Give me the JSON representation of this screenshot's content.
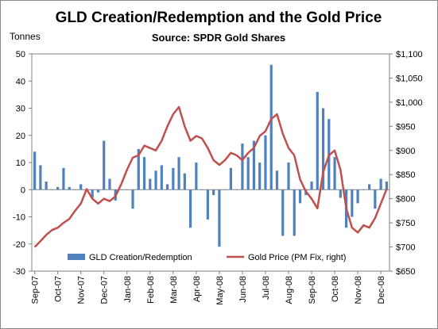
{
  "chart_data": {
    "type": "bar-line",
    "title": "GLD Creation/Redemption  and the Gold Price",
    "subtitle": "Source: SPDR Gold Shares",
    "y_label": "Tonnes",
    "categories": [
      "Sep-07",
      null,
      null,
      null,
      "Oct-07",
      null,
      null,
      null,
      "Nov-07",
      null,
      null,
      null,
      "Dec-07",
      null,
      null,
      null,
      "Jan-08",
      null,
      null,
      null,
      "Feb-08",
      null,
      null,
      null,
      "Mar-08",
      null,
      null,
      null,
      "Apr-08",
      null,
      null,
      null,
      "May-08",
      null,
      null,
      null,
      "Jun-08",
      null,
      null,
      null,
      "Jul-08",
      null,
      null,
      null,
      "Aug-08",
      null,
      null,
      null,
      "Sep-08",
      null,
      null,
      null,
      "Oct-08",
      null,
      null,
      null,
      "Nov-08",
      null,
      null,
      null,
      "Dec-08",
      null
    ],
    "series": [
      {
        "name": "GLD Creation/Redemption",
        "color": "#4f81bd",
        "type": "bar",
        "values": [
          14,
          9,
          3,
          0,
          1,
          8,
          1,
          0,
          2,
          0,
          -3,
          -1,
          18,
          4,
          -4,
          0,
          0,
          -7,
          15,
          12,
          4,
          7,
          9,
          2,
          8,
          12,
          6,
          -14,
          10,
          0,
          -11,
          -2,
          -21,
          0,
          8,
          0,
          17,
          12,
          18,
          10,
          20,
          46,
          7,
          -17,
          10,
          -17,
          -5,
          -2,
          3,
          36,
          30,
          26,
          12,
          -3,
          -14,
          -10,
          -5,
          0,
          2,
          -7,
          4,
          3
        ]
      },
      {
        "name": "Gold Price (PM Fix, right)",
        "color": "#c0504d",
        "type": "line",
        "axis": "y2",
        "values": [
          700,
          712,
          725,
          735,
          740,
          750,
          758,
          775,
          790,
          820,
          800,
          790,
          800,
          795,
          805,
          830,
          860,
          885,
          890,
          910,
          905,
          900,
          920,
          950,
          975,
          990,
          950,
          920,
          930,
          925,
          905,
          880,
          870,
          880,
          895,
          890,
          880,
          895,
          905,
          930,
          940,
          965,
          975,
          935,
          905,
          890,
          840,
          815,
          800,
          780,
          855,
          890,
          900,
          860,
          780,
          740,
          730,
          745,
          740,
          760,
          790,
          820
        ]
      }
    ],
    "ylim": [
      -30,
      50
    ],
    "yticks": [
      -30,
      -20,
      -10,
      0,
      10,
      20,
      30,
      40,
      50
    ],
    "y2lim": [
      650,
      1100
    ],
    "y2ticks": [
      {
        "value": 650,
        "label": "$650"
      },
      {
        "value": 700,
        "label": "$700"
      },
      {
        "value": 750,
        "label": "$750"
      },
      {
        "value": 800,
        "label": "$800"
      },
      {
        "value": 850,
        "label": "$850"
      },
      {
        "value": 900,
        "label": "$900"
      },
      {
        "value": 950,
        "label": "$950"
      },
      {
        "value": 1000,
        "label": "$1,000"
      },
      {
        "value": 1050,
        "label": "$1,050"
      },
      {
        "value": 1100,
        "label": "$1,100"
      }
    ],
    "grid": false,
    "legend": "bottom"
  }
}
